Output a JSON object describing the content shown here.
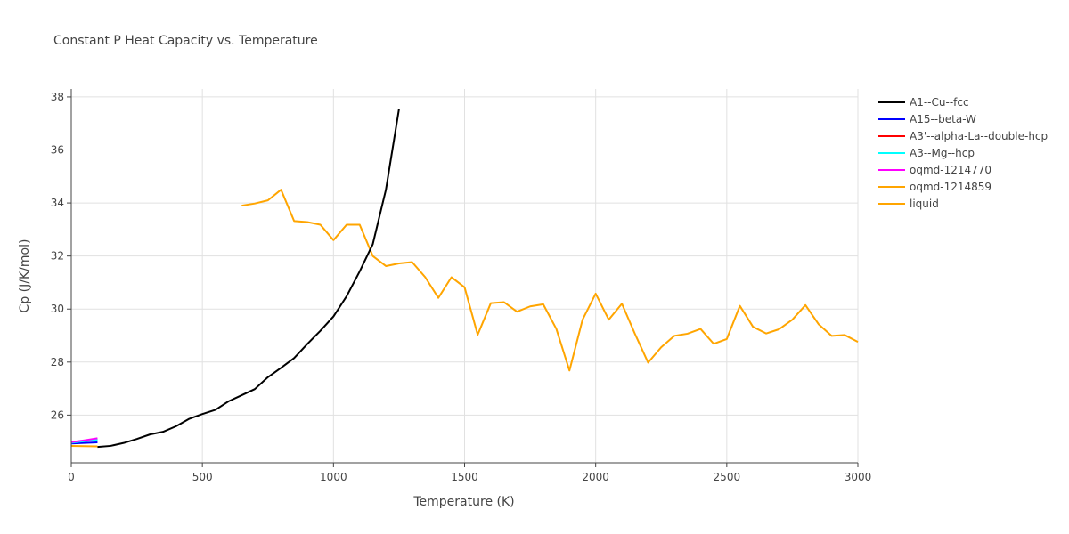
{
  "chart_data": {
    "type": "line",
    "title": "Constant P Heat Capacity vs. Temperature",
    "xlabel": "Temperature (K)",
    "ylabel": "Cp (J/K/mol)",
    "xlim": [
      0,
      3000
    ],
    "ylim": [
      24.2,
      38.3
    ],
    "xticks": [
      0,
      500,
      1000,
      1500,
      2000,
      2500,
      3000
    ],
    "xtick_labels": [
      "0",
      "500",
      "1000",
      "1500",
      "2000",
      "2500",
      "3000"
    ],
    "yticks": [
      26,
      28,
      30,
      32,
      34,
      36,
      38
    ],
    "ytick_labels": [
      "26",
      "28",
      "30",
      "32",
      "34",
      "36",
      "38"
    ],
    "grid": true,
    "legend_position": "right",
    "series": [
      {
        "name": "A1--Cu--fcc",
        "color": "#000000",
        "x": [
          100,
          150,
          200,
          250,
          300,
          350,
          400,
          450,
          500,
          550,
          600,
          650,
          700,
          750,
          800,
          850,
          900,
          950,
          1000,
          1050,
          1100,
          1150,
          1200,
          1250
        ],
        "y": [
          24.8,
          24.84,
          24.95,
          25.1,
          25.27,
          25.37,
          25.58,
          25.86,
          26.04,
          26.2,
          26.52,
          26.75,
          26.98,
          27.43,
          27.78,
          28.15,
          28.68,
          29.18,
          29.72,
          30.48,
          31.42,
          32.45,
          34.5,
          37.55
        ]
      },
      {
        "name": "A15--beta-W",
        "color": "#0000ff",
        "x": [
          0,
          50,
          100
        ],
        "y": [
          24.93,
          24.95,
          24.97
        ]
      },
      {
        "name": "A3'--alpha-La--double-hcp",
        "color": "#ff0000",
        "x": [
          0,
          50,
          100
        ],
        "y": [
          24.97,
          25.03,
          25.09
        ]
      },
      {
        "name": "A3--Mg--hcp",
        "color": "#00ffff",
        "x": [
          0,
          50,
          100
        ],
        "y": [
          24.96,
          25.02,
          25.07
        ]
      },
      {
        "name": "oqmd-1214770",
        "color": "#ff00ff",
        "x": [
          0,
          50,
          100
        ],
        "y": [
          24.98,
          25.05,
          25.13
        ]
      },
      {
        "name": "oqmd-1214859",
        "color": "#ffa500",
        "x": [
          0,
          50,
          100
        ],
        "y": [
          24.84,
          24.83,
          24.82
        ]
      },
      {
        "name": "liquid",
        "color": "#ffa500",
        "x": [
          650,
          700,
          750,
          800,
          850,
          900,
          950,
          1000,
          1050,
          1100,
          1150,
          1200,
          1250,
          1300,
          1350,
          1400,
          1450,
          1500,
          1550,
          1600,
          1650,
          1700,
          1750,
          1800,
          1850,
          1900,
          1950,
          2000,
          2050,
          2100,
          2150,
          2200,
          2250,
          2300,
          2350,
          2400,
          2450,
          2500,
          2550,
          2600,
          2650,
          2700,
          2750,
          2800,
          2850,
          2900,
          2950,
          3000
        ],
        "y": [
          33.9,
          33.98,
          34.1,
          34.5,
          33.32,
          33.28,
          33.18,
          32.6,
          33.18,
          33.18,
          32.0,
          31.62,
          31.72,
          31.77,
          31.2,
          30.42,
          31.2,
          30.82,
          29.03,
          30.22,
          30.26,
          29.9,
          30.1,
          30.18,
          29.25,
          27.68,
          29.6,
          30.58,
          29.6,
          30.2,
          29.06,
          27.98,
          28.56,
          28.99,
          29.07,
          29.25,
          28.69,
          28.87,
          30.12,
          29.33,
          29.08,
          29.24,
          29.6,
          30.15,
          29.43,
          28.99,
          29.02,
          28.76
        ]
      }
    ]
  }
}
